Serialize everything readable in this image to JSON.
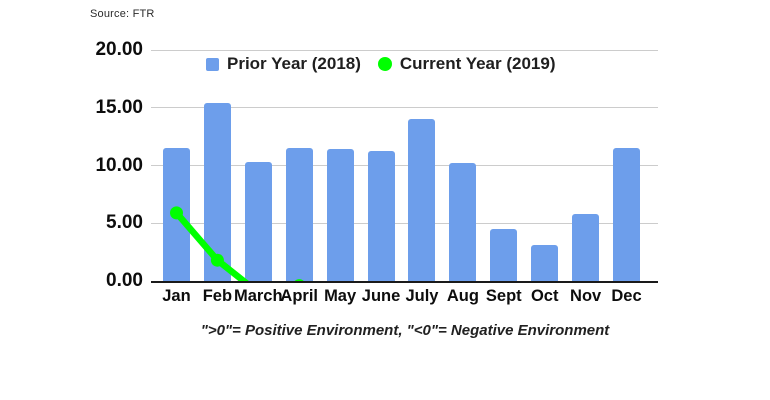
{
  "source_label": "Source: FTR",
  "caption": "\">0\"= Positive Environment, \"<0\"= Negative Environment",
  "colors": {
    "bar_blue": "#6d9eeb",
    "line_green": "#00ff00",
    "gridline": "#cccccc",
    "axis": "#1a1a1a",
    "text": "#0d0d0d"
  },
  "legend": [
    {
      "label": "Prior Year (2018)",
      "color": "#6d9eeb",
      "shape": "square"
    },
    {
      "label": "Current Year (2019)",
      "color": "#00ff00",
      "shape": "circle"
    }
  ],
  "chart_data": {
    "type": "bar",
    "categories": [
      "Jan",
      "Feb",
      "March",
      "April",
      "May",
      "June",
      "July",
      "Aug",
      "Sept",
      "Oct",
      "Nov",
      "Dec"
    ],
    "series": [
      {
        "name": "Prior Year (2018)",
        "type": "bar",
        "color": "#6d9eeb",
        "values": [
          11.5,
          15.4,
          10.3,
          11.5,
          11.4,
          11.3,
          14.0,
          10.2,
          4.5,
          3.1,
          5.8,
          11.5
        ]
      },
      {
        "name": "Current Year (2019)",
        "type": "line",
        "color": "#00ff00",
        "values": [
          5.9,
          1.8,
          -1.0,
          -0.4,
          null,
          null,
          null,
          null,
          null,
          null,
          null,
          null
        ]
      }
    ],
    "title": "",
    "xlabel": "",
    "ylabel": "",
    "ylim": [
      0,
      20
    ],
    "yticks": [
      "0.00",
      "5.00",
      "10.00",
      "15.00",
      "20.00"
    ],
    "grid": true,
    "legend_position": "top-inside",
    "clip_negative_at_zero": true
  }
}
